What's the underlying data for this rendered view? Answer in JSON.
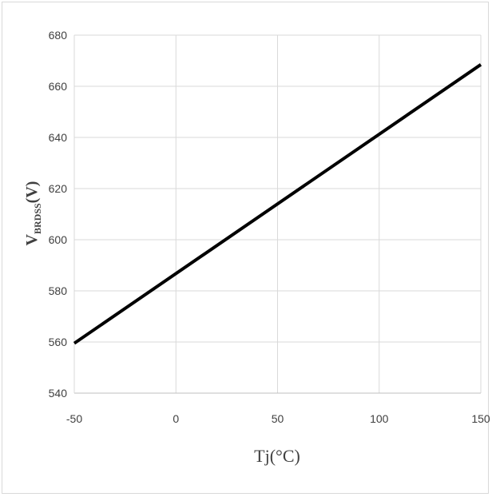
{
  "chart_data": {
    "type": "line",
    "title": "",
    "xlabel": "Tj(°C)",
    "ylabel": {
      "main": "V",
      "subscript": "BRDSS",
      "unit": "(V)"
    },
    "xlim": [
      -50,
      150
    ],
    "ylim": [
      540,
      680
    ],
    "x_ticks": [
      -50,
      0,
      50,
      100,
      150
    ],
    "y_ticks": [
      540,
      560,
      580,
      600,
      620,
      640,
      660,
      680
    ],
    "grid": true,
    "legend": "none",
    "series": [
      {
        "x": [
          -50,
          150
        ],
        "y": [
          559.5,
          668.5
        ],
        "color": "#000000"
      }
    ]
  }
}
